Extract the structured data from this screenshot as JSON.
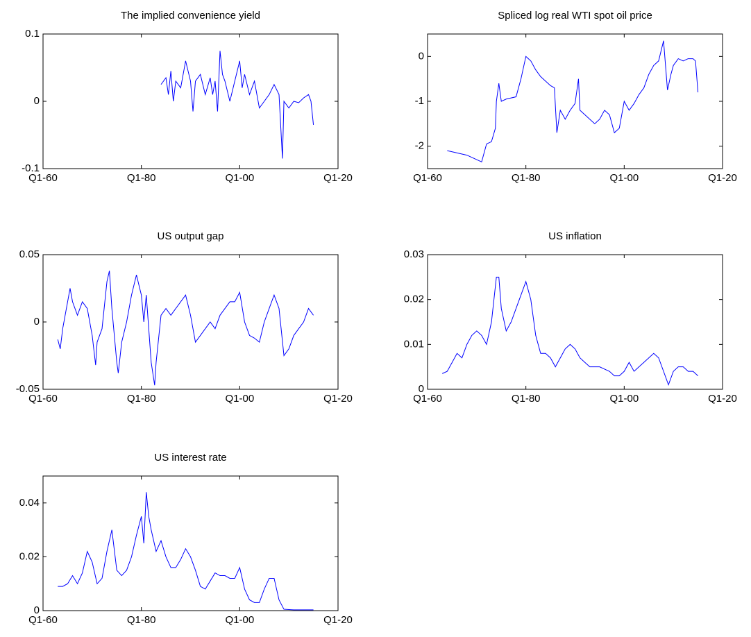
{
  "chart_data": [
    {
      "type": "line",
      "title": "The implied convenience yield",
      "x": [
        1984,
        1985,
        1985.5,
        1986,
        1986.5,
        1987,
        1988,
        1989,
        1990,
        1990.5,
        1991,
        1992,
        1993,
        1994,
        1994.5,
        1995,
        1995.5,
        1996,
        1996.5,
        1997,
        1998,
        1999,
        2000,
        2000.5,
        2001,
        2002,
        2003,
        2004,
        2005,
        2006,
        2007,
        2008,
        2008.7,
        2009,
        2010,
        2011,
        2012,
        2013,
        2014,
        2014.5,
        2015
      ],
      "series": [
        {
          "color": "#0000ff",
          "values": [
            0.025,
            0.035,
            0.01,
            0.045,
            0.0,
            0.03,
            0.02,
            0.06,
            0.03,
            -0.015,
            0.03,
            0.04,
            0.01,
            0.035,
            0.01,
            0.03,
            -0.015,
            0.075,
            0.04,
            0.03,
            0.0,
            0.03,
            0.06,
            0.02,
            0.04,
            0.01,
            0.03,
            -0.01,
            0.0,
            0.01,
            0.025,
            0.01,
            -0.085,
            0.0,
            -0.01,
            0.0,
            -0.002,
            0.005,
            0.01,
            0.0,
            -0.035
          ]
        }
      ],
      "xlim": [
        1960,
        2020
      ],
      "xticks": [
        {
          "value": 1960,
          "label": "Q1-60"
        },
        {
          "value": 1980,
          "label": "Q1-80"
        },
        {
          "value": 2000,
          "label": "Q1-00"
        },
        {
          "value": 2020,
          "label": "Q1-20"
        }
      ],
      "ylim": [
        -0.1,
        0.1
      ],
      "yticks": [
        -0.1,
        0,
        0.1
      ]
    },
    {
      "type": "line",
      "title": "Spliced log real WTI spot oil price",
      "x": [
        1964,
        1966,
        1968,
        1970,
        1971,
        1972,
        1973,
        1973.8,
        1974,
        1974.5,
        1975,
        1976,
        1978,
        1979,
        1980,
        1981,
        1982,
        1983,
        1984,
        1985,
        1985.8,
        1986.3,
        1987,
        1988,
        1989,
        1990,
        1990.7,
        1991,
        1992,
        1993,
        1994,
        1995,
        1996,
        1997,
        1998,
        1999,
        2000,
        2001,
        2002,
        2003,
        2004,
        2005,
        2006,
        2007,
        2008,
        2008.8,
        2009.5,
        2010,
        2011,
        2012,
        2013,
        2014,
        2014.5,
        2015
      ],
      "series": [
        {
          "color": "#0000ff",
          "values": [
            -2.1,
            -2.15,
            -2.2,
            -2.3,
            -2.35,
            -1.95,
            -1.9,
            -1.6,
            -1.0,
            -0.6,
            -1.0,
            -0.95,
            -0.9,
            -0.5,
            0.0,
            -0.1,
            -0.3,
            -0.45,
            -0.55,
            -0.65,
            -0.7,
            -1.7,
            -1.2,
            -1.4,
            -1.2,
            -1.05,
            -0.5,
            -1.2,
            -1.3,
            -1.4,
            -1.5,
            -1.4,
            -1.2,
            -1.3,
            -1.7,
            -1.6,
            -1.0,
            -1.2,
            -1.05,
            -0.85,
            -0.7,
            -0.4,
            -0.2,
            -0.1,
            0.35,
            -0.75,
            -0.4,
            -0.2,
            -0.05,
            -0.1,
            -0.05,
            -0.05,
            -0.1,
            -0.8
          ]
        }
      ],
      "xlim": [
        1960,
        2020
      ],
      "xticks": [
        {
          "value": 1960,
          "label": "Q1-60"
        },
        {
          "value": 1980,
          "label": "Q1-80"
        },
        {
          "value": 2000,
          "label": "Q1-00"
        },
        {
          "value": 2020,
          "label": "Q1-20"
        }
      ],
      "ylim": [
        -2.5,
        0.5
      ],
      "yticks": [
        -2,
        -1,
        0
      ]
    },
    {
      "type": "line",
      "title": "US output gap",
      "x": [
        1963,
        1963.5,
        1964,
        1965,
        1965.5,
        1966,
        1967,
        1968,
        1969,
        1970,
        1970.7,
        1971,
        1972,
        1973,
        1973.5,
        1974,
        1975,
        1975.3,
        1976,
        1977,
        1978,
        1979,
        1980,
        1980.5,
        1981,
        1982,
        1982.7,
        1983,
        1984,
        1985,
        1986,
        1987,
        1988,
        1989,
        1990,
        1991,
        1992,
        1993,
        1994,
        1995,
        1996,
        1997,
        1998,
        1999,
        2000,
        2001,
        2002,
        2003,
        2004,
        2005,
        2006,
        2007,
        2008,
        2009,
        2010,
        2011,
        2012,
        2013,
        2014,
        2015
      ],
      "series": [
        {
          "color": "#0000ff",
          "values": [
            -0.013,
            -0.02,
            -0.005,
            0.015,
            0.025,
            0.015,
            0.005,
            0.015,
            0.01,
            -0.01,
            -0.032,
            -0.015,
            -0.005,
            0.03,
            0.038,
            0.01,
            -0.03,
            -0.038,
            -0.015,
            0.0,
            0.02,
            0.035,
            0.02,
            0.0,
            0.02,
            -0.03,
            -0.047,
            -0.03,
            0.005,
            0.01,
            0.005,
            0.01,
            0.015,
            0.02,
            0.005,
            -0.015,
            -0.01,
            -0.005,
            0.0,
            -0.005,
            0.005,
            0.01,
            0.015,
            0.015,
            0.022,
            0.0,
            -0.01,
            -0.012,
            -0.015,
            0.0,
            0.01,
            0.02,
            0.01,
            -0.025,
            -0.02,
            -0.01,
            -0.005,
            0.0,
            0.01,
            0.005
          ]
        }
      ],
      "xlim": [
        1960,
        2020
      ],
      "xticks": [
        {
          "value": 1960,
          "label": "Q1-60"
        },
        {
          "value": 1980,
          "label": "Q1-80"
        },
        {
          "value": 2000,
          "label": "Q1-00"
        },
        {
          "value": 2020,
          "label": "Q1-20"
        }
      ],
      "ylim": [
        -0.05,
        0.05
      ],
      "yticks": [
        -0.05,
        0,
        0.05
      ]
    },
    {
      "type": "line",
      "title": "US inflation",
      "x": [
        1963,
        1964,
        1965,
        1966,
        1967,
        1968,
        1969,
        1970,
        1971,
        1972,
        1973,
        1974,
        1974.5,
        1975,
        1976,
        1977,
        1978,
        1979,
        1980,
        1981,
        1982,
        1983,
        1984,
        1985,
        1986,
        1987,
        1988,
        1989,
        1990,
        1991,
        1992,
        1993,
        1994,
        1995,
        1996,
        1997,
        1998,
        1999,
        2000,
        2001,
        2002,
        2003,
        2004,
        2005,
        2006,
        2007,
        2008,
        2009,
        2010,
        2011,
        2012,
        2013,
        2014,
        2015
      ],
      "series": [
        {
          "color": "#0000ff",
          "values": [
            0.0035,
            0.004,
            0.006,
            0.008,
            0.007,
            0.01,
            0.012,
            0.013,
            0.012,
            0.01,
            0.015,
            0.025,
            0.025,
            0.018,
            0.013,
            0.015,
            0.018,
            0.021,
            0.024,
            0.02,
            0.012,
            0.008,
            0.008,
            0.007,
            0.005,
            0.007,
            0.009,
            0.01,
            0.009,
            0.007,
            0.006,
            0.005,
            0.005,
            0.005,
            0.0045,
            0.004,
            0.003,
            0.003,
            0.004,
            0.006,
            0.004,
            0.005,
            0.006,
            0.007,
            0.008,
            0.007,
            0.004,
            0.001,
            0.004,
            0.005,
            0.005,
            0.004,
            0.004,
            0.003
          ]
        }
      ],
      "xlim": [
        1960,
        2020
      ],
      "xticks": [
        {
          "value": 1960,
          "label": "Q1-60"
        },
        {
          "value": 1980,
          "label": "Q1-80"
        },
        {
          "value": 2000,
          "label": "Q1-00"
        },
        {
          "value": 2020,
          "label": "Q1-20"
        }
      ],
      "ylim": [
        0,
        0.03
      ],
      "yticks": [
        0,
        0.01,
        0.02,
        0.03
      ]
    },
    {
      "type": "line",
      "title": "US interest rate",
      "x": [
        1963,
        1964,
        1965,
        1966,
        1967,
        1968,
        1969,
        1970,
        1971,
        1972,
        1973,
        1974,
        1975,
        1976,
        1977,
        1978,
        1979,
        1980,
        1980.5,
        1981,
        1981.5,
        1982,
        1983,
        1984,
        1985,
        1986,
        1987,
        1988,
        1989,
        1990,
        1991,
        1992,
        1993,
        1994,
        1995,
        1996,
        1997,
        1998,
        1999,
        2000,
        2001,
        2002,
        2003,
        2004,
        2005,
        2006,
        2007,
        2008,
        2009,
        2010,
        2011,
        2012,
        2013,
        2014,
        2015
      ],
      "series": [
        {
          "color": "#0000ff",
          "values": [
            0.009,
            0.009,
            0.01,
            0.013,
            0.01,
            0.014,
            0.022,
            0.018,
            0.01,
            0.012,
            0.022,
            0.03,
            0.015,
            0.013,
            0.015,
            0.02,
            0.028,
            0.035,
            0.025,
            0.044,
            0.035,
            0.03,
            0.022,
            0.026,
            0.02,
            0.016,
            0.016,
            0.019,
            0.023,
            0.02,
            0.015,
            0.009,
            0.008,
            0.011,
            0.014,
            0.013,
            0.013,
            0.012,
            0.012,
            0.016,
            0.008,
            0.004,
            0.003,
            0.003,
            0.008,
            0.012,
            0.012,
            0.004,
            0.0005,
            0.0004,
            0.0003,
            0.0003,
            0.0003,
            0.0003,
            0.0003
          ]
        }
      ],
      "xlim": [
        1960,
        2020
      ],
      "xticks": [
        {
          "value": 1960,
          "label": "Q1-60"
        },
        {
          "value": 1980,
          "label": "Q1-80"
        },
        {
          "value": 2000,
          "label": "Q1-00"
        },
        {
          "value": 2020,
          "label": "Q1-20"
        }
      ],
      "ylim": [
        0,
        0.05
      ],
      "yticks": [
        0,
        0.02,
        0.04
      ]
    }
  ]
}
